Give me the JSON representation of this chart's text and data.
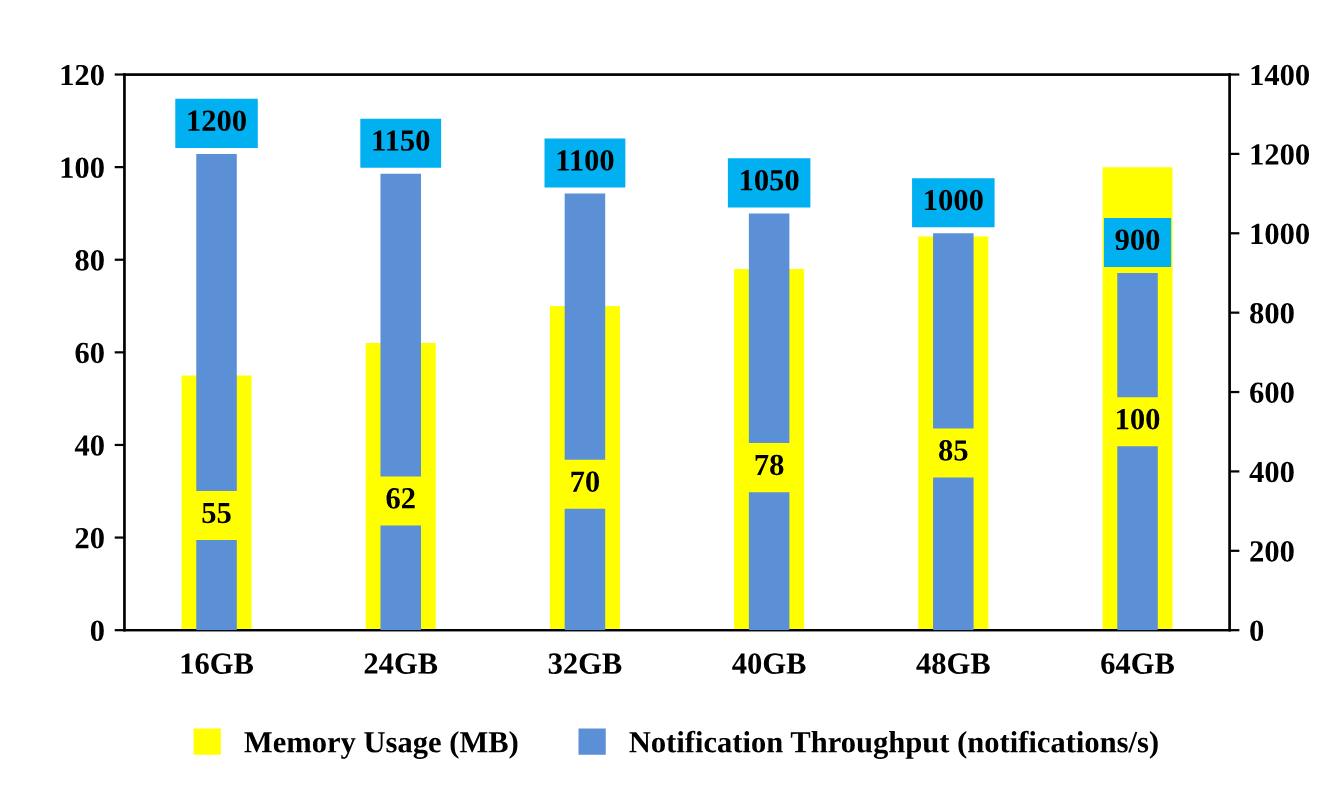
{
  "chart_data": {
    "type": "bar",
    "categories": [
      "16GB",
      "24GB",
      "32GB",
      "40GB",
      "48GB",
      "64GB"
    ],
    "series": [
      {
        "name": "Memory Usage (MB)",
        "color": "#ffff00",
        "values": [
          55,
          62,
          70,
          78,
          85,
          100
        ]
      },
      {
        "name": "Notification Throughput (notifications/s)",
        "color": "#5b8fd6",
        "axis": "y2",
        "values": [
          1200,
          1150,
          1100,
          1050,
          1000,
          900
        ]
      }
    ],
    "ylim": [
      0,
      120
    ],
    "yticks": [
      0,
      20,
      40,
      60,
      80,
      100,
      120
    ],
    "y2lim": [
      0,
      1400
    ],
    "y2ticks": [
      0,
      200,
      400,
      600,
      800,
      1000,
      1200,
      1400
    ],
    "data_labels": true,
    "grid": false,
    "legend": "bottom"
  }
}
